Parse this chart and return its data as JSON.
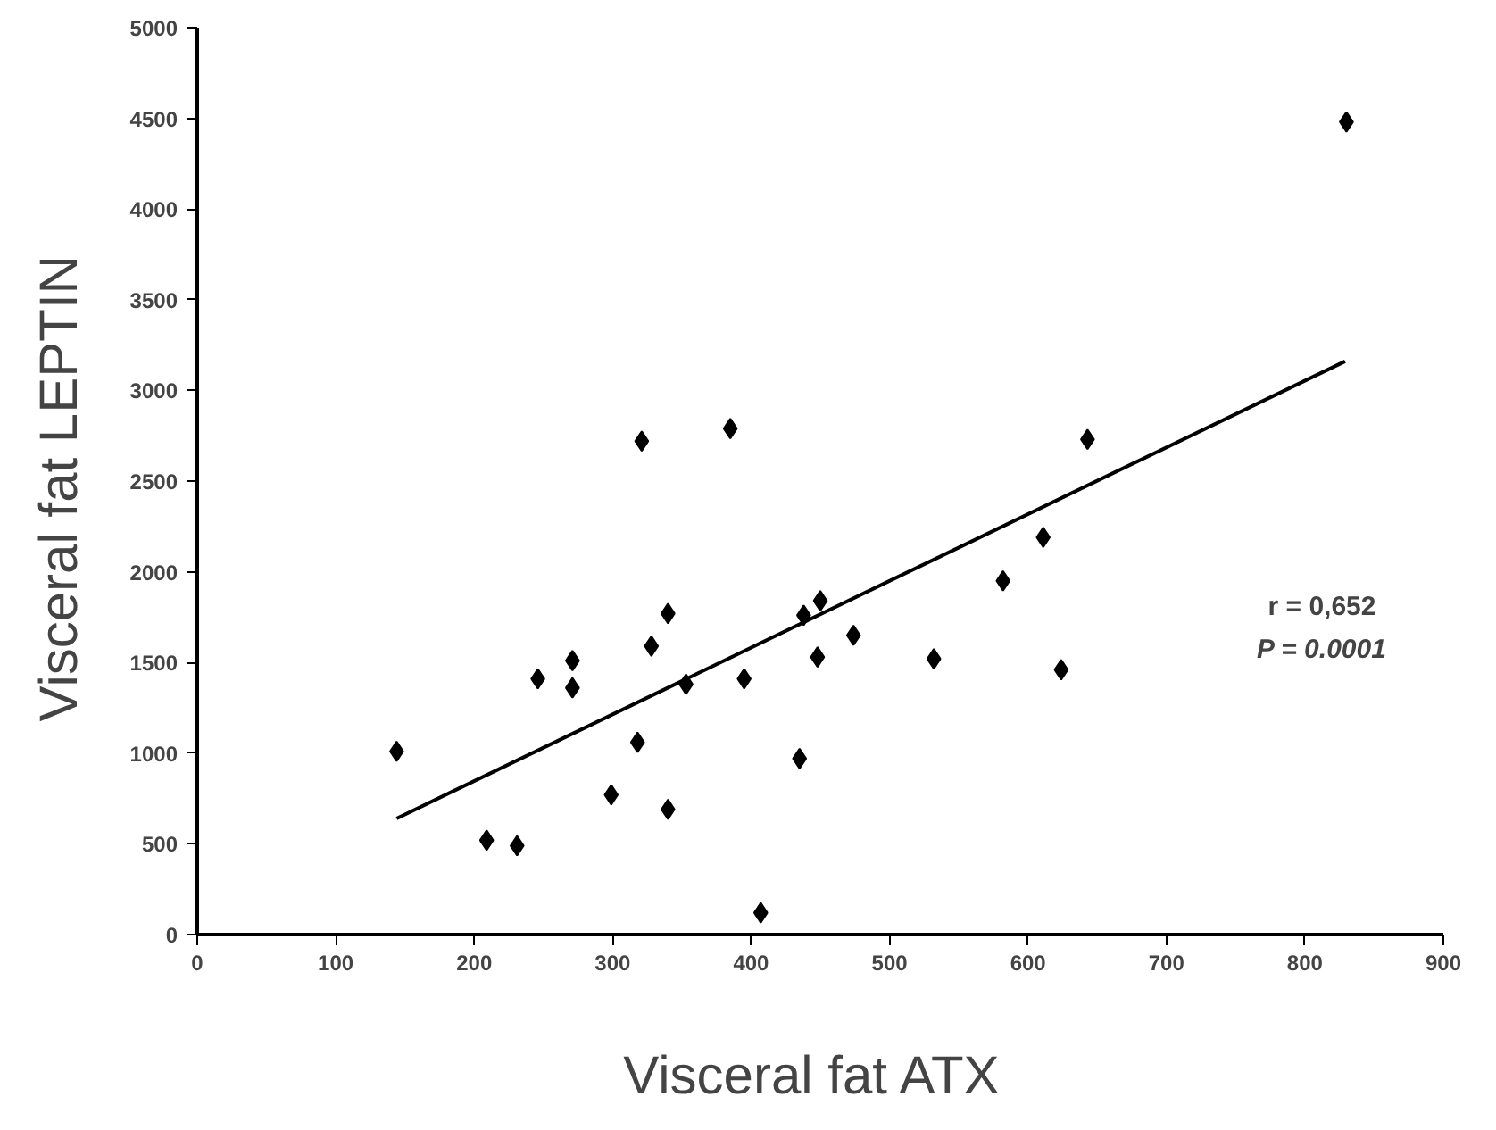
{
  "chart_data": {
    "type": "scatter",
    "xlabel": "Visceral fat  ATX",
    "ylabel": "Visceral fat  LEPTIN",
    "x": [
      144,
      209,
      231,
      246,
      271,
      271,
      299,
      318,
      321,
      328,
      340,
      340,
      353,
      385,
      395,
      407,
      435,
      438,
      448,
      450,
      474,
      532,
      582,
      611,
      624,
      643,
      830
    ],
    "values": [
      1010,
      520,
      490,
      1410,
      1510,
      1360,
      770,
      1060,
      2720,
      1590,
      1770,
      690,
      1380,
      2790,
      1410,
      120,
      970,
      1760,
      1530,
      1840,
      1650,
      1520,
      1950,
      2190,
      1460,
      2730,
      4480
    ],
    "color": "#000000",
    "marker": "diamond",
    "series": [
      {
        "type": "line",
        "x": [
          144,
          829
        ],
        "values": [
          640,
          3160
        ],
        "color": "#000000",
        "marker": "none"
      }
    ],
    "annotations": [
      "r = 0,652",
      "P = 0.0001"
    ],
    "xlim": [
      0,
      900
    ],
    "ylim": [
      0,
      5000
    ],
    "xticks": [
      0,
      100,
      200,
      300,
      400,
      500,
      600,
      700,
      800,
      900
    ],
    "yticks": [
      0,
      500,
      1000,
      1500,
      2000,
      2500,
      3000,
      3500,
      4000,
      4500,
      5000
    ],
    "grid": false
  }
}
